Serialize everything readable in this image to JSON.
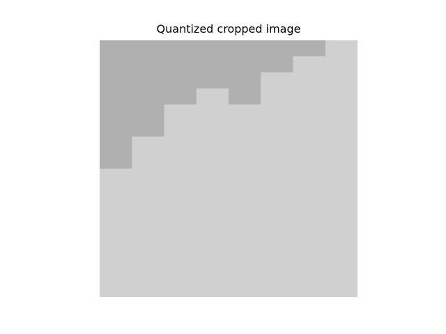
{
  "figure": {
    "title": "Quantized cropped image"
  },
  "image": {
    "colors": {
      "dark": "#b0b0b0",
      "light": "#d0d0d0"
    },
    "grid_columns": 8,
    "grid_rows": 16,
    "dark_rows_per_column": [
      8,
      6,
      4,
      3,
      4,
      2,
      1,
      0
    ]
  }
}
